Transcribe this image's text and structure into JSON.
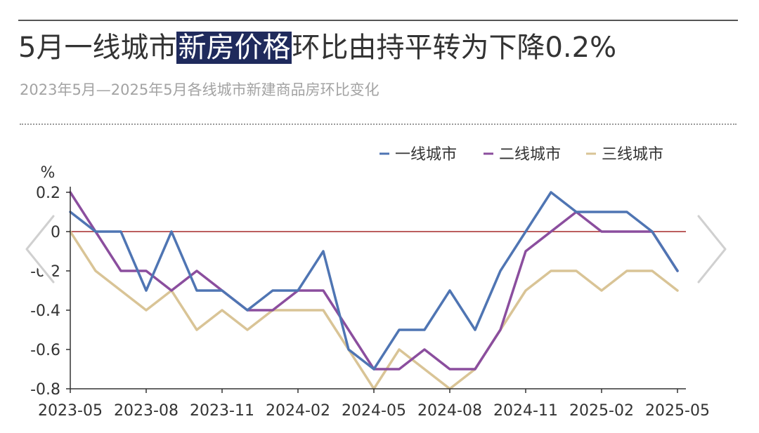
{
  "header": {
    "title_before": "5月一线城市",
    "title_highlight": "新房价格",
    "title_after": "环比由持平转为下降0.2%",
    "subtitle": "2023年5月—2025年5月各线城市新建商品房环比变化"
  },
  "colors": {
    "tier1": "#4f75b3",
    "tier2": "#8b4e9e",
    "tier3": "#d9c496",
    "zero_line": "#a52a2a",
    "axis": "#333333"
  },
  "icons": [
    "chevron-left-icon",
    "chevron-right-icon"
  ],
  "chart_data": {
    "type": "line",
    "title": "5月一线城市新房价格环比由持平转为下降0.2%",
    "subtitle": "2023年5月—2025年5月各线城市新建商品房环比变化",
    "ylabel": "%",
    "xlabel": "",
    "ylim": [
      -0.8,
      0.2
    ],
    "yticks": [
      0.2,
      0,
      -0.2,
      -0.4,
      -0.6,
      -0.8
    ],
    "ytick_labels": [
      "0.2",
      "0",
      "-0.2",
      "-0.4",
      "-0.6",
      "-0.8"
    ],
    "x": [
      "2023-05",
      "2023-06",
      "2023-07",
      "2023-08",
      "2023-09",
      "2023-10",
      "2023-11",
      "2023-12",
      "2024-01",
      "2024-02",
      "2024-03",
      "2024-04",
      "2024-05",
      "2024-06",
      "2024-07",
      "2024-08",
      "2024-09",
      "2024-10",
      "2024-11",
      "2024-12",
      "2025-01",
      "2025-02",
      "2025-03",
      "2025-04",
      "2025-05"
    ],
    "xtick_labels": [
      "2023-05",
      "2023-08",
      "2023-11",
      "2024-02",
      "2024-05",
      "2024-08",
      "2024-11",
      "2025-02",
      "2025-05"
    ],
    "legend_position": "top-right",
    "series": [
      {
        "name": "一线城市",
        "values": [
          0.1,
          0,
          0,
          -0.3,
          0,
          -0.3,
          -0.3,
          -0.4,
          -0.3,
          -0.3,
          -0.1,
          -0.6,
          -0.7,
          -0.5,
          -0.5,
          -0.3,
          -0.5,
          -0.2,
          0,
          0.2,
          0.1,
          0.1,
          0.1,
          0,
          -0.2
        ]
      },
      {
        "name": "二线城市",
        "values": [
          0.2,
          0,
          -0.2,
          -0.2,
          -0.3,
          -0.2,
          -0.3,
          -0.4,
          -0.4,
          -0.3,
          -0.3,
          -0.5,
          -0.7,
          -0.7,
          -0.6,
          -0.7,
          -0.7,
          -0.5,
          -0.1,
          0,
          0.1,
          0,
          0,
          0,
          -0.2
        ]
      },
      {
        "name": "三线城市",
        "values": [
          0,
          -0.2,
          -0.3,
          -0.4,
          -0.3,
          -0.5,
          -0.4,
          -0.5,
          -0.4,
          -0.4,
          -0.4,
          -0.6,
          -0.8,
          -0.6,
          -0.7,
          -0.8,
          -0.7,
          -0.5,
          -0.3,
          -0.2,
          -0.2,
          -0.3,
          -0.2,
          -0.2,
          -0.3
        ]
      }
    ]
  }
}
